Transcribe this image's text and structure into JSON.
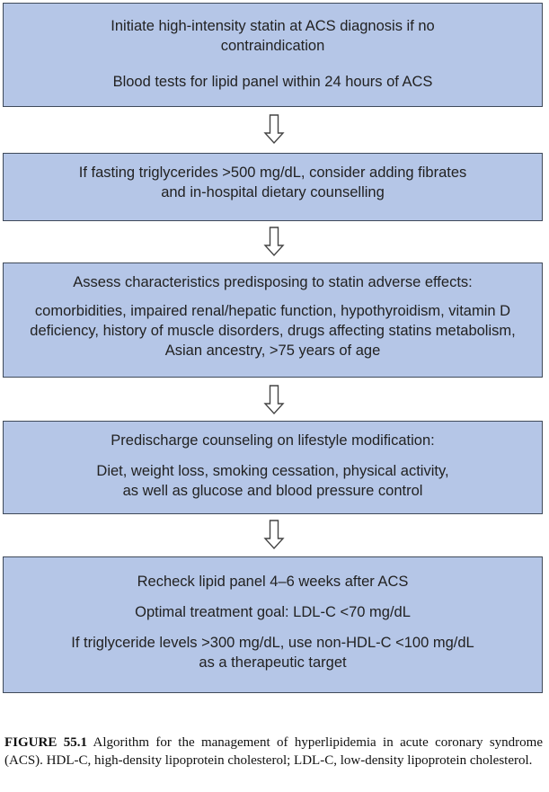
{
  "boxes": [
    {
      "id": "statin-init",
      "paragraphs": [
        [
          "Initiate high-intensity statin at ACS diagnosis  if no",
          "contraindication"
        ],
        [
          "Blood tests for lipid panel within 24 hours of ACS"
        ]
      ]
    },
    {
      "id": "triglycerides",
      "paragraphs": [
        [
          "If fasting triglycerides >500 mg/dL, consider adding fibrates",
          "and in-hospital dietary counselling"
        ]
      ]
    },
    {
      "id": "adverse-effects",
      "paragraphs": [
        [
          "Assess characteristics predisposing to statin adverse effects:"
        ],
        [
          "comorbidities, impaired renal/hepatic function, hypothyroidism, vitamin D",
          "deficiency, history of muscle disorders, drugs affecting statins metabolism,",
          "Asian ancestry, >75 years of age"
        ]
      ]
    },
    {
      "id": "lifestyle",
      "paragraphs": [
        [
          "Predischarge counseling on lifestyle modification:"
        ],
        [
          "Diet, weight loss, smoking cessation, physical activity,",
          "as well as glucose and blood pressure control"
        ]
      ]
    },
    {
      "id": "recheck",
      "paragraphs": [
        [
          "Recheck lipid panel 4–6 weeks after ACS"
        ],
        [
          "Optimal treatment goal: LDL-C <70 mg/dL"
        ],
        [
          "If triglyceride levels >300 mg/dL, use non-HDL-C <100 mg/dL",
          "as a therapeutic target"
        ]
      ]
    }
  ],
  "caption": {
    "label": "FIGURE 55.1",
    "text": "Algorithm for the management of hyperlipidemia in acute coronary syndrome (ACS). HDL-C, high-density lipoprotein cholesterol; LDL-C, low-density lipoprotein cholesterol."
  },
  "colors": {
    "box_fill": "#b5c6e7",
    "box_border": "#3f4a5a",
    "arrow_fill": "#ffffff",
    "arrow_stroke": "#444444"
  }
}
